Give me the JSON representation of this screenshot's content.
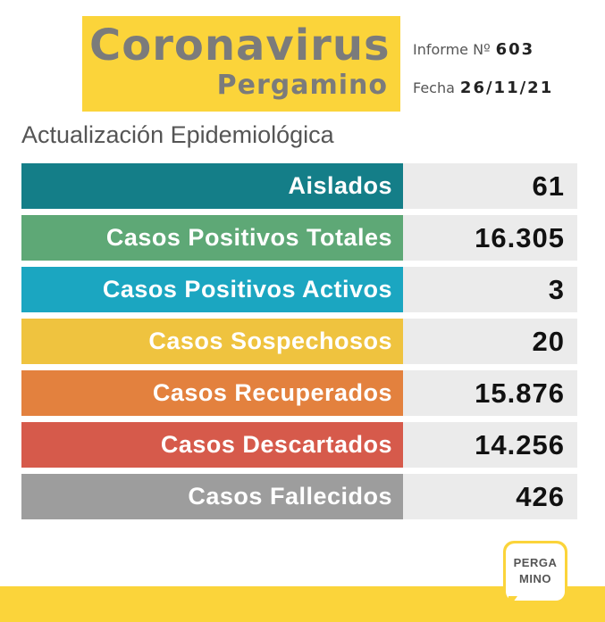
{
  "header": {
    "title": "Coronavirus",
    "subtitle": "Pergamino",
    "report_label": "Informe Nº",
    "report_number": "603",
    "date_label": "Fecha",
    "date_value": "26/11/21"
  },
  "section_title": "Actualización Epidemiológica",
  "colors": {
    "aislados": "#147e88",
    "positivos_totales": "#5ea876",
    "positivos_activos": "#1ba6c1",
    "sospechosos": "#efc33f",
    "recuperados": "#e3813e",
    "descartados": "#d65a4b",
    "fallecidos": "#9d9d9d"
  },
  "rows": [
    {
      "label": "Aislados",
      "value": "61"
    },
    {
      "label": "Casos Positivos Totales",
      "value": "16.305"
    },
    {
      "label": "Casos Positivos Activos",
      "value": "3"
    },
    {
      "label": "Casos Sospechosos",
      "value": "20"
    },
    {
      "label": "Casos Recuperados",
      "value": "15.876"
    },
    {
      "label": "Casos Descartados",
      "value": "14.256"
    },
    {
      "label": "Casos Fallecidos",
      "value": "426"
    }
  ],
  "logo": {
    "line1": "PERGA",
    "line2": "MINO"
  }
}
